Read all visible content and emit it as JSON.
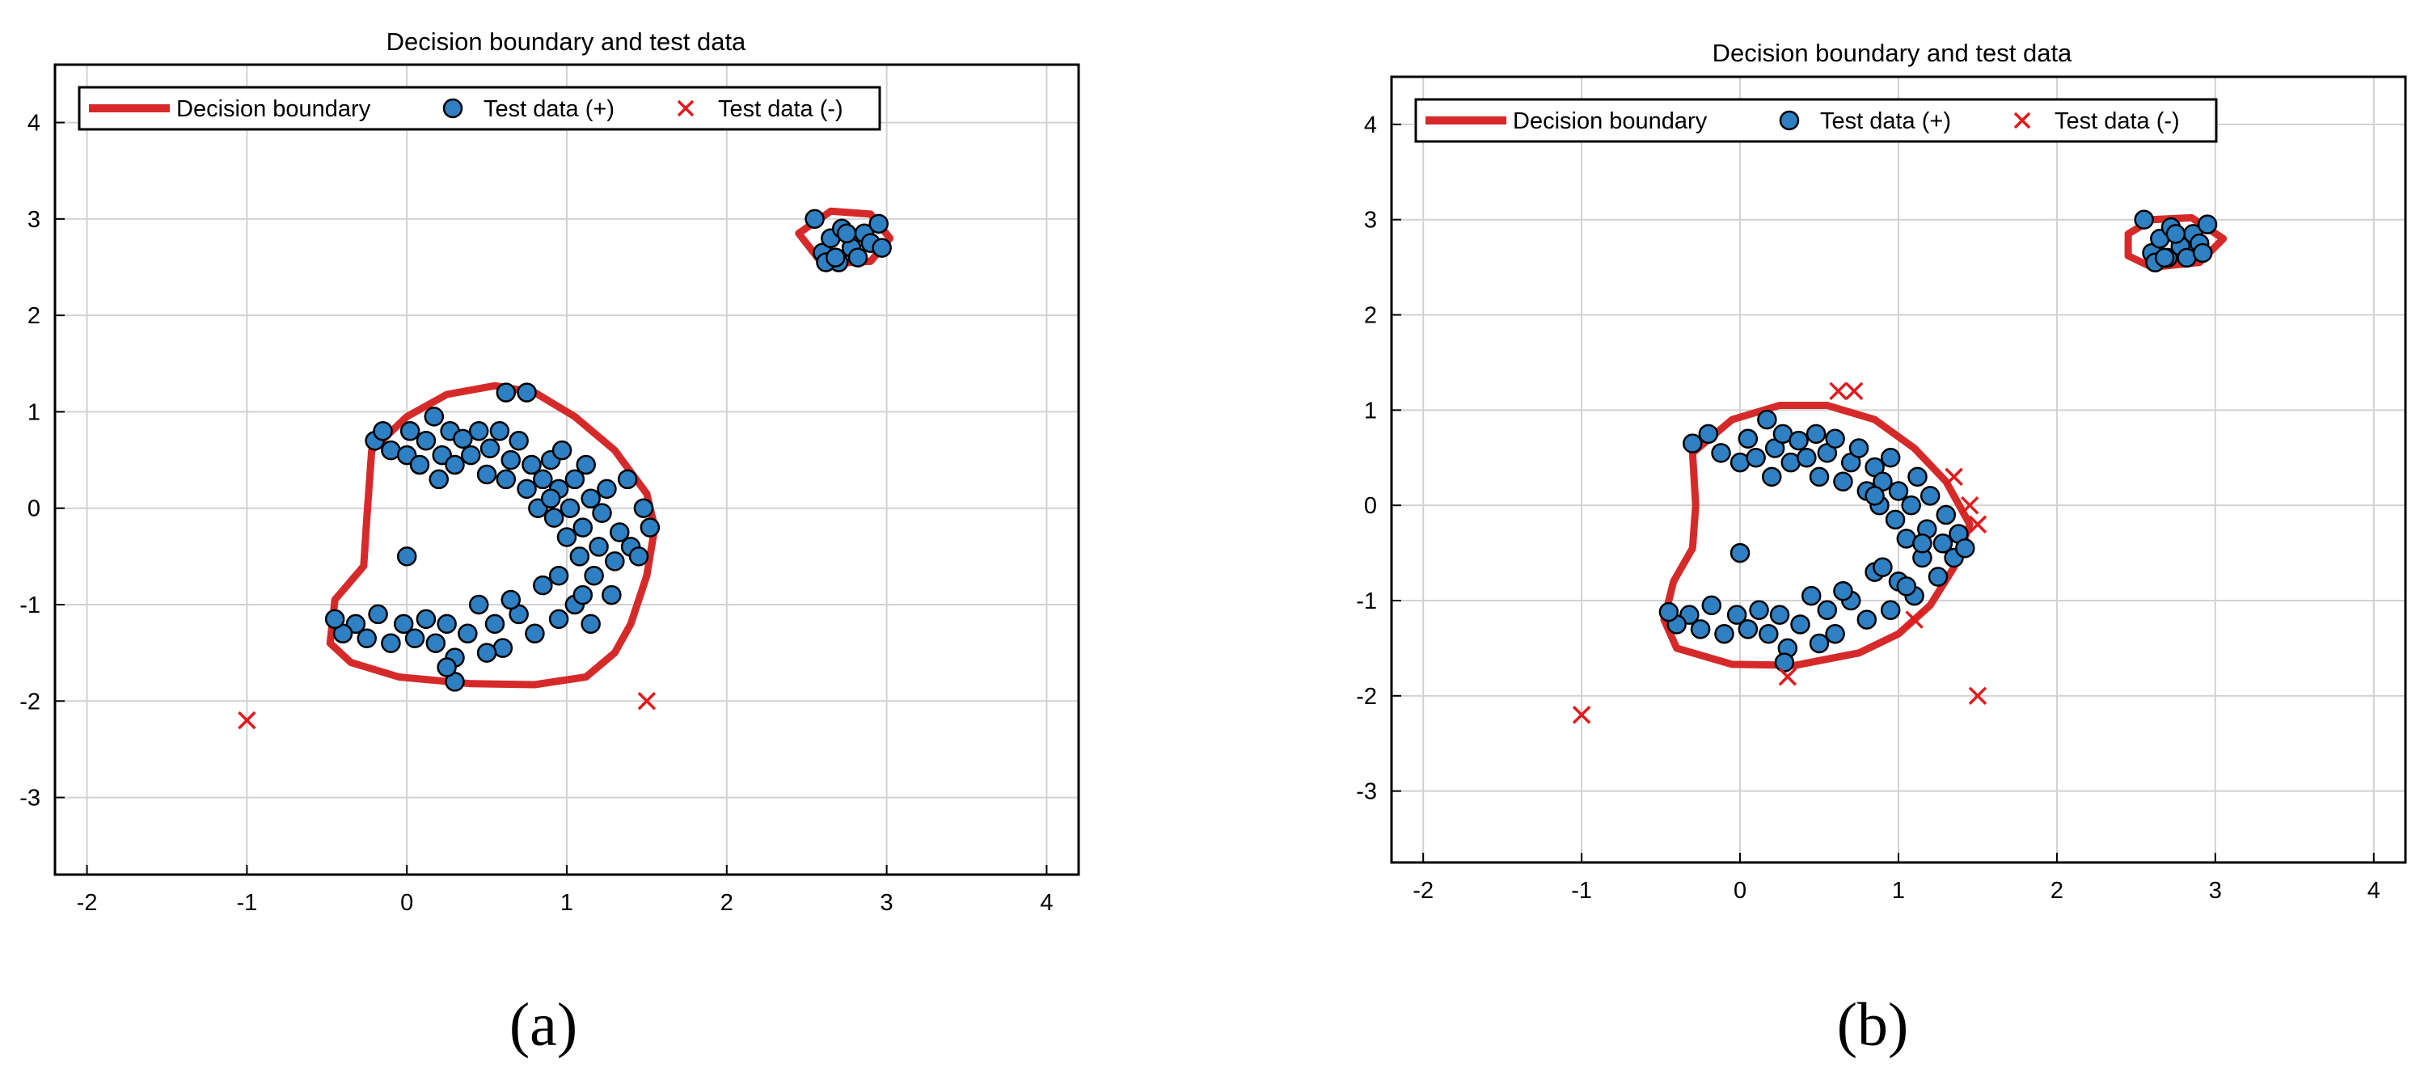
{
  "colors": {
    "boundary": "#d62a2a",
    "positive_fill": "#2e80c2",
    "marker_edge": "#000000",
    "negative": "#e3191b",
    "grid": "#d2d2d2",
    "axes": "#000000"
  },
  "chart_data": [
    {
      "panel": "a",
      "type": "scatter",
      "title": "Decision boundary and test data",
      "xlabel": "",
      "ylabel": "",
      "xlim": [
        -2.2,
        4.2
      ],
      "ylim": [
        -3.8,
        4.6
      ],
      "xticks": [
        "-2",
        "-1",
        "0",
        "1",
        "2",
        "3",
        "4"
      ],
      "yticks": [
        "-3",
        "-2",
        "-1",
        "0",
        "1",
        "2",
        "3",
        "4"
      ],
      "grid": true,
      "legend": {
        "placement": "top-left",
        "entries": [
          "Decision boundary",
          "Test data (+)",
          "Test data (-)"
        ]
      },
      "boundaries": [
        {
          "name": "main",
          "points": [
            [
              -0.22,
              0.6
            ],
            [
              0.0,
              0.95
            ],
            [
              0.25,
              1.18
            ],
            [
              0.55,
              1.27
            ],
            [
              0.8,
              1.2
            ],
            [
              1.05,
              0.95
            ],
            [
              1.3,
              0.6
            ],
            [
              1.5,
              0.15
            ],
            [
              1.55,
              -0.2
            ],
            [
              1.5,
              -0.7
            ],
            [
              1.4,
              -1.2
            ],
            [
              1.3,
              -1.5
            ],
            [
              1.12,
              -1.75
            ],
            [
              0.8,
              -1.83
            ],
            [
              0.4,
              -1.82
            ],
            [
              -0.05,
              -1.75
            ],
            [
              -0.35,
              -1.6
            ],
            [
              -0.48,
              -1.4
            ],
            [
              -0.45,
              -0.95
            ],
            [
              -0.27,
              -0.6
            ],
            [
              -0.25,
              -0.1
            ]
          ]
        },
        {
          "name": "small",
          "points": [
            [
              2.45,
              2.85
            ],
            [
              2.65,
              3.08
            ],
            [
              2.9,
              3.05
            ],
            [
              3.02,
              2.8
            ],
            [
              2.9,
              2.56
            ],
            [
              2.6,
              2.53
            ]
          ]
        }
      ],
      "series": [
        {
          "name": "Test data (+)",
          "marker": "circle",
          "points": [
            [
              -0.2,
              0.7
            ],
            [
              -0.15,
              0.8
            ],
            [
              -0.1,
              0.6
            ],
            [
              0.0,
              0.55
            ],
            [
              0.02,
              0.8
            ],
            [
              0.08,
              0.45
            ],
            [
              0.12,
              0.7
            ],
            [
              0.17,
              0.95
            ],
            [
              0.22,
              0.55
            ],
            [
              0.27,
              0.8
            ],
            [
              0.3,
              0.45
            ],
            [
              0.35,
              0.72
            ],
            [
              0.4,
              0.55
            ],
            [
              0.45,
              0.8
            ],
            [
              0.5,
              0.35
            ],
            [
              0.52,
              0.62
            ],
            [
              0.58,
              0.8
            ],
            [
              0.62,
              0.3
            ],
            [
              0.65,
              0.5
            ],
            [
              0.7,
              0.7
            ],
            [
              0.75,
              0.2
            ],
            [
              0.78,
              0.45
            ],
            [
              0.82,
              0.0
            ],
            [
              0.85,
              0.3
            ],
            [
              0.9,
              0.5
            ],
            [
              0.92,
              -0.1
            ],
            [
              0.95,
              0.2
            ],
            [
              0.97,
              0.6
            ],
            [
              1.0,
              -0.3
            ],
            [
              1.02,
              0.0
            ],
            [
              1.05,
              0.3
            ],
            [
              1.08,
              -0.5
            ],
            [
              1.1,
              -0.2
            ],
            [
              1.12,
              0.45
            ],
            [
              1.15,
              0.1
            ],
            [
              1.17,
              -0.7
            ],
            [
              1.2,
              -0.4
            ],
            [
              1.22,
              -0.05
            ],
            [
              1.25,
              0.2
            ],
            [
              1.28,
              -0.9
            ],
            [
              1.3,
              -0.55
            ],
            [
              1.33,
              -0.25
            ],
            [
              1.38,
              0.3
            ],
            [
              1.4,
              -0.4
            ],
            [
              1.45,
              -0.5
            ],
            [
              1.48,
              0.0
            ],
            [
              1.52,
              -0.2
            ],
            [
              1.15,
              -1.2
            ],
            [
              1.05,
              -1.0
            ],
            [
              0.95,
              -1.15
            ],
            [
              0.85,
              -0.8
            ],
            [
              0.8,
              -1.3
            ],
            [
              0.7,
              -1.1
            ],
            [
              0.6,
              -1.45
            ],
            [
              0.55,
              -1.2
            ],
            [
              0.45,
              -1.0
            ],
            [
              0.38,
              -1.3
            ],
            [
              0.3,
              -1.55
            ],
            [
              0.25,
              -1.2
            ],
            [
              0.18,
              -1.4
            ],
            [
              0.12,
              -1.15
            ],
            [
              0.05,
              -1.35
            ],
            [
              -0.02,
              -1.2
            ],
            [
              -0.1,
              -1.4
            ],
            [
              -0.18,
              -1.1
            ],
            [
              -0.25,
              -1.35
            ],
            [
              -0.32,
              -1.2
            ],
            [
              -0.4,
              -1.3
            ],
            [
              -0.45,
              -1.15
            ],
            [
              0.3,
              -1.8
            ],
            [
              0.25,
              -1.65
            ],
            [
              -0.0,
              -0.5
            ],
            [
              0.62,
              1.2
            ],
            [
              0.75,
              1.2
            ],
            [
              0.95,
              -0.7
            ],
            [
              1.1,
              -0.9
            ],
            [
              0.65,
              -0.95
            ],
            [
              0.5,
              -1.5
            ],
            [
              0.2,
              0.3
            ],
            [
              0.9,
              0.1
            ],
            [
              2.55,
              3.0
            ],
            [
              2.6,
              2.65
            ],
            [
              2.65,
              2.8
            ],
            [
              2.7,
              2.55
            ],
            [
              2.72,
              2.9
            ],
            [
              2.78,
              2.7
            ],
            [
              2.82,
              2.6
            ],
            [
              2.86,
              2.85
            ],
            [
              2.9,
              2.75
            ],
            [
              2.95,
              2.95
            ],
            [
              2.97,
              2.7
            ],
            [
              2.62,
              2.55
            ],
            [
              2.75,
              2.85
            ],
            [
              2.68,
              2.6
            ]
          ]
        },
        {
          "name": "Test data (-)",
          "marker": "x",
          "points": [
            [
              -1.0,
              -2.2
            ],
            [
              1.5,
              -2.0
            ]
          ]
        }
      ]
    },
    {
      "panel": "b",
      "type": "scatter",
      "title": "Decision boundary and test data",
      "xlabel": "",
      "ylabel": "",
      "xlim": [
        -2.2,
        4.2
      ],
      "ylim": [
        -3.75,
        4.5
      ],
      "xticks": [
        "-2",
        "-1",
        "0",
        "1",
        "2",
        "3",
        "4"
      ],
      "yticks": [
        "-3",
        "-2",
        "-1",
        "0",
        "1",
        "2",
        "3",
        "4"
      ],
      "grid": true,
      "legend": {
        "placement": "top-left",
        "entries": [
          "Decision boundary",
          "Test data (+)",
          "Test data (-)"
        ]
      },
      "boundaries": [
        {
          "name": "main",
          "points": [
            [
              -0.3,
              0.55
            ],
            [
              -0.05,
              0.9
            ],
            [
              0.25,
              1.05
            ],
            [
              0.55,
              1.05
            ],
            [
              0.85,
              0.9
            ],
            [
              1.1,
              0.6
            ],
            [
              1.3,
              0.25
            ],
            [
              1.45,
              -0.2
            ],
            [
              1.35,
              -0.65
            ],
            [
              1.2,
              -1.05
            ],
            [
              1.0,
              -1.35
            ],
            [
              0.75,
              -1.55
            ],
            [
              0.35,
              -1.68
            ],
            [
              -0.05,
              -1.67
            ],
            [
              -0.4,
              -1.5
            ],
            [
              -0.48,
              -1.2
            ],
            [
              -0.42,
              -0.8
            ],
            [
              -0.3,
              -0.45
            ],
            [
              -0.28,
              0.0
            ]
          ]
        },
        {
          "name": "small",
          "points": [
            [
              2.45,
              2.85
            ],
            [
              2.6,
              3.0
            ],
            [
              2.85,
              3.02
            ],
            [
              3.05,
              2.8
            ],
            [
              2.9,
              2.55
            ],
            [
              2.6,
              2.5
            ],
            [
              2.45,
              2.62
            ]
          ]
        }
      ],
      "series": [
        {
          "name": "Test data (+)",
          "marker": "circle",
          "points": [
            [
              -0.3,
              0.65
            ],
            [
              -0.2,
              0.75
            ],
            [
              -0.12,
              0.55
            ],
            [
              0.0,
              0.45
            ],
            [
              0.05,
              0.7
            ],
            [
              0.1,
              0.5
            ],
            [
              0.17,
              0.9
            ],
            [
              0.22,
              0.6
            ],
            [
              0.27,
              0.75
            ],
            [
              0.32,
              0.45
            ],
            [
              0.37,
              0.68
            ],
            [
              0.42,
              0.5
            ],
            [
              0.48,
              0.75
            ],
            [
              0.5,
              0.3
            ],
            [
              0.55,
              0.55
            ],
            [
              0.6,
              0.7
            ],
            [
              0.65,
              0.25
            ],
            [
              0.7,
              0.45
            ],
            [
              0.75,
              0.6
            ],
            [
              0.8,
              0.15
            ],
            [
              0.85,
              0.4
            ],
            [
              0.88,
              0.0
            ],
            [
              0.9,
              0.25
            ],
            [
              0.95,
              0.5
            ],
            [
              0.98,
              -0.15
            ],
            [
              1.0,
              0.15
            ],
            [
              1.05,
              -0.35
            ],
            [
              1.08,
              0.0
            ],
            [
              1.12,
              0.3
            ],
            [
              1.15,
              -0.55
            ],
            [
              1.18,
              -0.25
            ],
            [
              1.2,
              0.1
            ],
            [
              1.25,
              -0.75
            ],
            [
              1.28,
              -0.4
            ],
            [
              1.3,
              -0.1
            ],
            [
              1.35,
              -0.55
            ],
            [
              1.38,
              -0.3
            ],
            [
              1.42,
              -0.45
            ],
            [
              1.1,
              -0.95
            ],
            [
              1.0,
              -0.8
            ],
            [
              0.95,
              -1.1
            ],
            [
              0.85,
              -0.7
            ],
            [
              0.8,
              -1.2
            ],
            [
              0.7,
              -1.0
            ],
            [
              0.6,
              -1.35
            ],
            [
              0.55,
              -1.1
            ],
            [
              0.45,
              -0.95
            ],
            [
              0.38,
              -1.25
            ],
            [
              0.3,
              -1.5
            ],
            [
              0.25,
              -1.15
            ],
            [
              0.18,
              -1.35
            ],
            [
              0.12,
              -1.1
            ],
            [
              0.05,
              -1.3
            ],
            [
              -0.02,
              -1.15
            ],
            [
              -0.1,
              -1.35
            ],
            [
              -0.18,
              -1.05
            ],
            [
              -0.25,
              -1.3
            ],
            [
              -0.32,
              -1.15
            ],
            [
              -0.4,
              -1.25
            ],
            [
              -0.45,
              -1.12
            ],
            [
              0.28,
              -1.65
            ],
            [
              0.0,
              -0.5
            ],
            [
              0.9,
              -0.65
            ],
            [
              1.05,
              -0.85
            ],
            [
              0.65,
              -0.9
            ],
            [
              0.5,
              -1.45
            ],
            [
              0.2,
              0.3
            ],
            [
              0.85,
              0.1
            ],
            [
              1.15,
              -0.4
            ],
            [
              2.55,
              3.0
            ],
            [
              2.6,
              2.65
            ],
            [
              2.65,
              2.8
            ],
            [
              2.7,
              2.6
            ],
            [
              2.72,
              2.92
            ],
            [
              2.78,
              2.72
            ],
            [
              2.82,
              2.6
            ],
            [
              2.86,
              2.85
            ],
            [
              2.9,
              2.75
            ],
            [
              2.95,
              2.95
            ],
            [
              2.92,
              2.65
            ],
            [
              2.62,
              2.55
            ],
            [
              2.75,
              2.85
            ],
            [
              2.68,
              2.6
            ]
          ]
        },
        {
          "name": "Test data (-)",
          "marker": "x",
          "points": [
            [
              -1.0,
              -2.2
            ],
            [
              0.62,
              1.2
            ],
            [
              0.72,
              1.2
            ],
            [
              1.35,
              0.3
            ],
            [
              1.45,
              0.0
            ],
            [
              1.5,
              -0.2
            ],
            [
              1.1,
              -1.2
            ],
            [
              0.3,
              -1.8
            ],
            [
              1.5,
              -2.0
            ]
          ]
        }
      ]
    }
  ],
  "captions": [
    "(a)",
    "(b)"
  ]
}
